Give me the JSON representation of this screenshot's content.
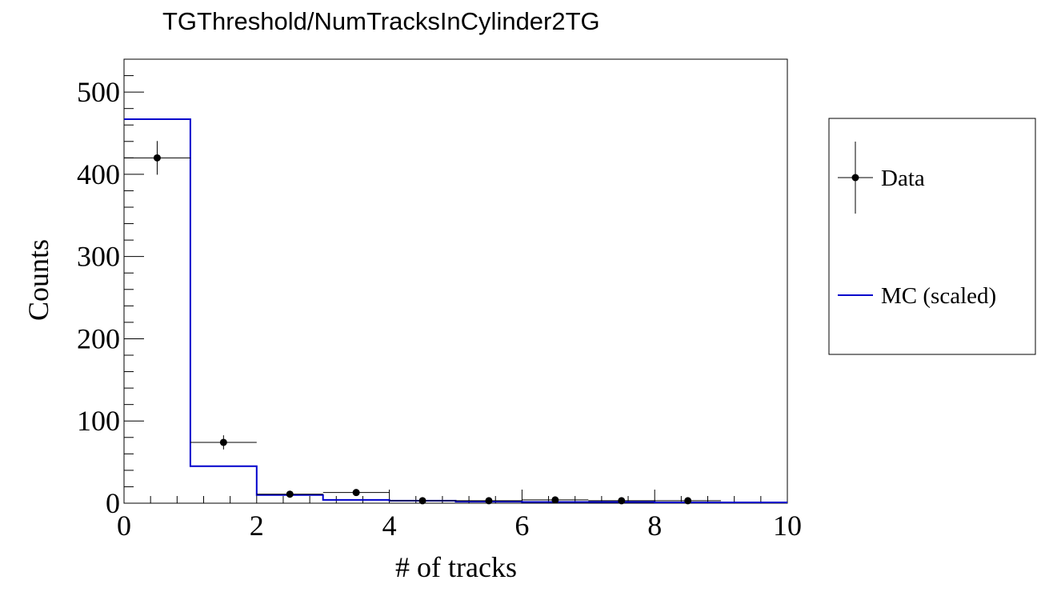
{
  "chart_data": {
    "type": "histogram",
    "title": "TGThreshold/NumTracksInCylinder2TG",
    "xlabel": "# of tracks",
    "ylabel": "Counts",
    "xlim": [
      0,
      10
    ],
    "ylim": [
      0,
      540
    ],
    "x_ticks": [
      "0",
      "2",
      "4",
      "6",
      "8",
      "10"
    ],
    "y_ticks": [
      "0",
      "100",
      "200",
      "300",
      "400",
      "500"
    ],
    "bin_edges": [
      0,
      1,
      2,
      3,
      4,
      5,
      6,
      7,
      8,
      9,
      10
    ],
    "series": [
      {
        "name": "Data",
        "style": "points_with_errors",
        "color": "#000000",
        "x": [
          0.5,
          1.5,
          2.5,
          3.5,
          4.5,
          5.5,
          6.5,
          7.5,
          8.5
        ],
        "values": [
          420,
          74,
          11,
          13,
          3,
          3,
          4,
          3,
          3
        ],
        "errors": [
          20.5,
          8.6,
          3.3,
          3.6,
          1.7,
          1.7,
          2,
          1.7,
          1.7
        ]
      },
      {
        "name": "MC (scaled)",
        "style": "step",
        "color": "#0000cc",
        "values": [
          467,
          45,
          10,
          4,
          3,
          2,
          1.5,
          1.5,
          1,
          1
        ]
      }
    ],
    "legend": {
      "position": "right",
      "entries": [
        "Data",
        "MC (scaled)"
      ]
    },
    "grid": false
  }
}
